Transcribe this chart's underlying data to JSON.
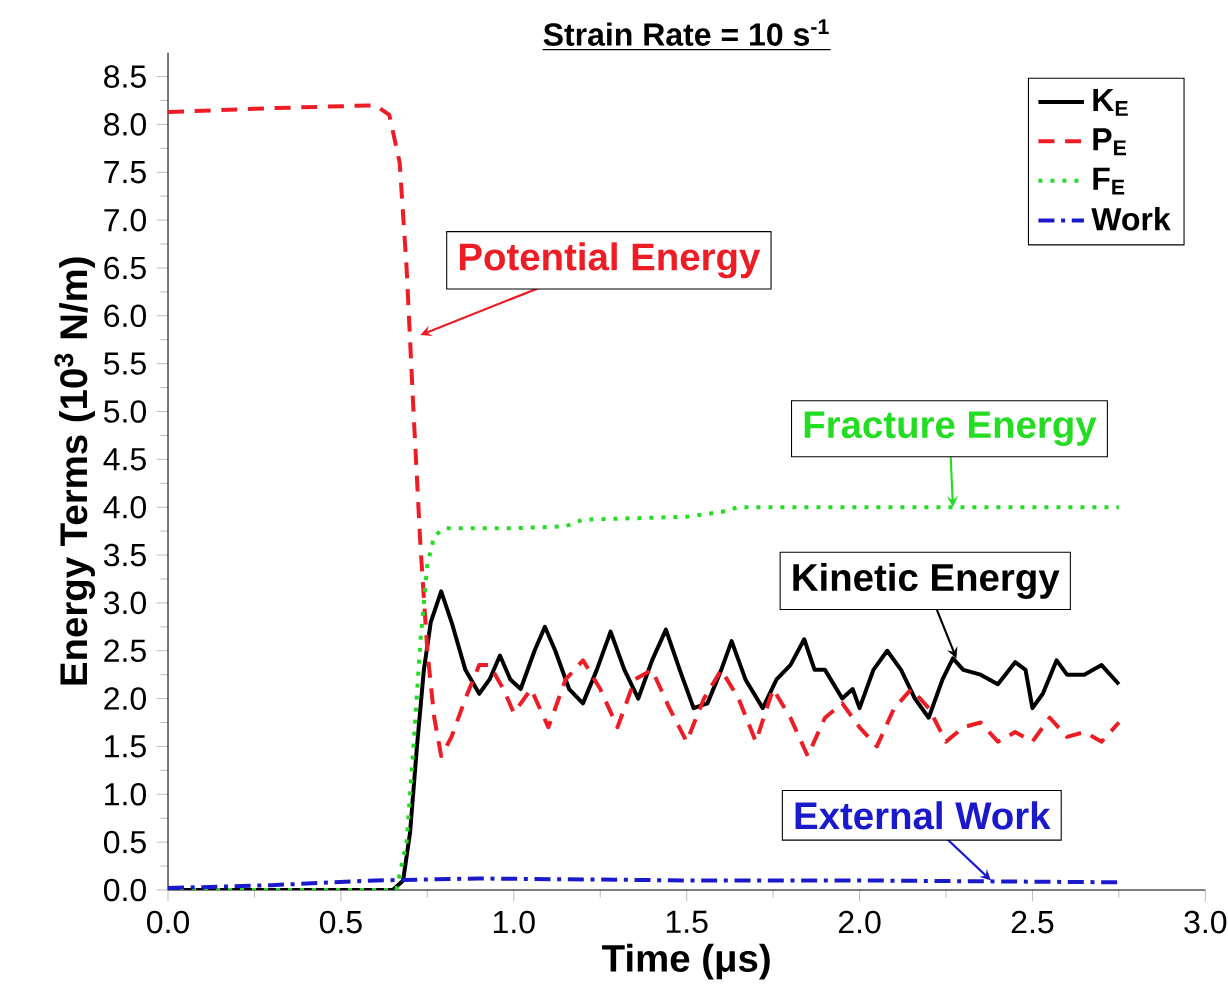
{
  "chart_data": {
    "type": "line",
    "title": "Strain Rate = 10 s$^{-1}$",
    "xlabel": "Time (μs)",
    "ylabel": "Energy Terms (10$^{3}$ N/m)",
    "xlim": [
      0,
      3.0
    ],
    "ylim": [
      0,
      8.75
    ],
    "xticks": [
      {
        "value": 0,
        "label": "0.0"
      },
      {
        "value": 0.5,
        "label": "0.5"
      },
      {
        "value": 1,
        "label": "1.0"
      },
      {
        "value": 1.5,
        "label": "1.5"
      },
      {
        "value": 2,
        "label": "2.0"
      },
      {
        "value": 2.5,
        "label": "2.5"
      },
      {
        "value": 3,
        "label": "3.0"
      }
    ],
    "yticks": [
      {
        "value": 0,
        "label": "0.0"
      },
      0.5,
      {
        "value": 1,
        "label": "1.0"
      },
      1.5,
      {
        "value": 2,
        "label": "2.0"
      },
      2.5,
      {
        "value": 3,
        "label": "3.0"
      },
      3.5,
      {
        "value": 4,
        "label": "4.0"
      },
      4.5,
      {
        "value": 5,
        "label": "5.0"
      },
      5.5,
      {
        "value": 6,
        "label": "6.0"
      },
      6.5,
      {
        "value": 7,
        "label": "7.0"
      },
      7.5,
      {
        "value": 8,
        "label": "8.0"
      },
      8.5
    ],
    "legend": "top right",
    "grid": false,
    "marker": "none",
    "series": [
      {
        "name": "K$_{E}$",
        "color": "#000000",
        "line_style": "solid",
        "x": [
          0,
          0.65,
          0.68,
          0.7,
          0.72,
          0.74,
          0.76,
          0.79,
          0.82,
          0.86,
          0.9,
          0.93,
          0.96,
          0.99,
          1.02,
          1.06,
          1.09,
          1.12,
          1.16,
          1.2,
          1.24,
          1.28,
          1.32,
          1.36,
          1.4,
          1.44,
          1.48,
          1.52,
          1.56,
          1.6,
          1.63,
          1.67,
          1.72,
          1.76,
          1.8,
          1.84,
          1.87,
          1.9,
          1.95,
          1.98,
          2.0,
          2.04,
          2.08,
          2.12,
          2.16,
          2.2,
          2.24,
          2.27,
          2.3,
          2.35,
          2.4,
          2.45,
          2.48,
          2.5,
          2.53,
          2.57,
          2.6,
          2.65,
          2.7,
          2.75
        ],
        "values": [
          0,
          0,
          0.1,
          0.6,
          1.5,
          2.3,
          2.8,
          3.12,
          2.8,
          2.3,
          2.05,
          2.2,
          2.45,
          2.2,
          2.1,
          2.5,
          2.75,
          2.5,
          2.1,
          1.95,
          2.3,
          2.7,
          2.3,
          2.0,
          2.4,
          2.72,
          2.3,
          1.9,
          1.95,
          2.3,
          2.6,
          2.2,
          1.9,
          2.2,
          2.35,
          2.62,
          2.3,
          2.3,
          2.0,
          2.1,
          1.9,
          2.3,
          2.5,
          2.3,
          2.0,
          1.8,
          2.2,
          2.42,
          2.3,
          2.25,
          2.15,
          2.38,
          2.3,
          1.9,
          2.05,
          2.4,
          2.25,
          2.25,
          2.35,
          2.15
        ]
      },
      {
        "name": "P$_{E}$",
        "color": "#ee1c24",
        "line_style": "dashed",
        "x": [
          0,
          0.3,
          0.6,
          0.64,
          0.67,
          0.69,
          0.71,
          0.73,
          0.75,
          0.77,
          0.79,
          0.82,
          0.86,
          0.9,
          0.93,
          0.97,
          1.0,
          1.05,
          1.1,
          1.15,
          1.2,
          1.25,
          1.3,
          1.35,
          1.4,
          1.45,
          1.5,
          1.55,
          1.6,
          1.65,
          1.7,
          1.75,
          1.8,
          1.85,
          1.9,
          1.95,
          2.0,
          2.05,
          2.1,
          2.15,
          2.2,
          2.25,
          2.3,
          2.35,
          2.4,
          2.45,
          2.5,
          2.55,
          2.6,
          2.65,
          2.7,
          2.75
        ],
        "values": [
          8.13,
          8.17,
          8.2,
          8.1,
          7.6,
          6.5,
          5.0,
          3.6,
          2.5,
          1.8,
          1.4,
          1.6,
          2.0,
          2.35,
          2.35,
          2.1,
          1.85,
          2.1,
          1.7,
          2.2,
          2.4,
          2.1,
          1.7,
          2.2,
          2.3,
          1.9,
          1.55,
          2.0,
          2.3,
          2.0,
          1.55,
          2.1,
          1.8,
          1.4,
          1.8,
          1.95,
          1.7,
          1.5,
          1.9,
          2.1,
          1.9,
          1.55,
          1.7,
          1.75,
          1.55,
          1.65,
          1.55,
          1.8,
          1.6,
          1.65,
          1.55,
          1.75
        ]
      },
      {
        "name": "F$_{E}$",
        "color": "#22dd22",
        "line_style": "dotted",
        "x": [
          0,
          0.66,
          0.69,
          0.71,
          0.73,
          0.75,
          0.77,
          0.8,
          1.0,
          1.15,
          1.2,
          1.5,
          1.6,
          1.65,
          2.0,
          2.75
        ],
        "values": [
          0,
          0,
          0.5,
          1.5,
          2.6,
          3.4,
          3.7,
          3.78,
          3.78,
          3.8,
          3.87,
          3.9,
          3.95,
          4.0,
          4.0,
          4.0
        ]
      },
      {
        "name": "Work",
        "color": "#1a1acc",
        "line_style": "dashdot",
        "x": [
          0,
          0.3,
          0.6,
          0.9,
          1.5,
          2.0,
          2.75
        ],
        "values": [
          0.02,
          0.05,
          0.1,
          0.12,
          0.1,
          0.1,
          0.08
        ]
      }
    ],
    "annotations": [
      {
        "text": "Potential Energy",
        "x": 0.73,
        "y": 5.8
      },
      {
        "text": "Fracture Energy",
        "x": 2.27,
        "y": 4.0
      },
      {
        "text": "Kinetic Energy",
        "x": 2.28,
        "y": 2.42
      },
      {
        "text": "External Work",
        "x": 2.38,
        "y": 0.1
      }
    ]
  }
}
